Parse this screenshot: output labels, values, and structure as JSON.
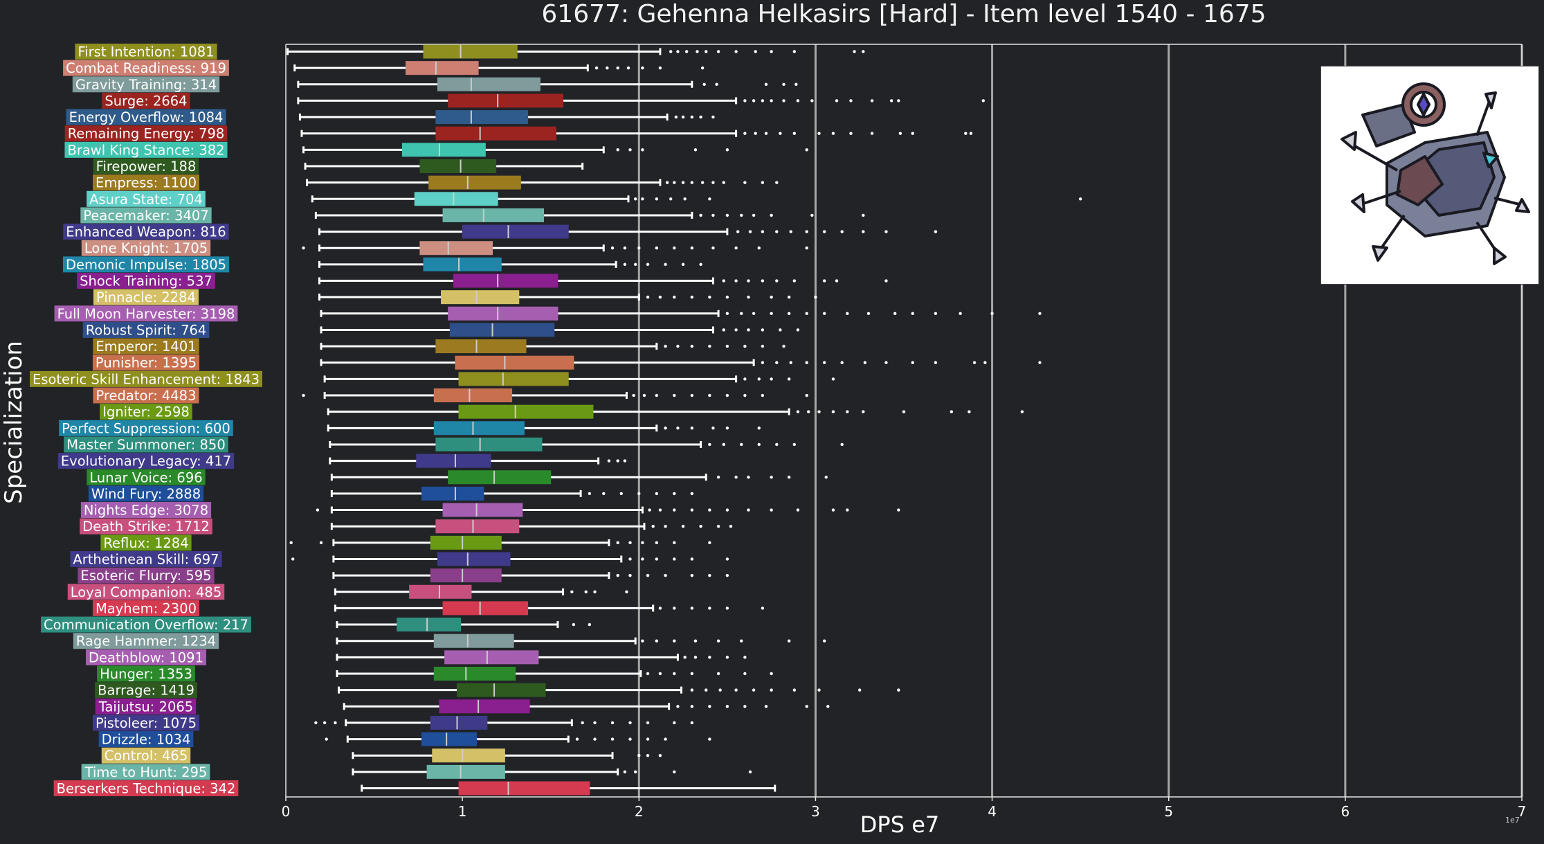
{
  "title": "61677: Gehenna Helkasirs [Hard] - Item level 1540 - 1675",
  "ylabel": "Specialization",
  "xlabel": "DPS e7",
  "x_multiplier_note": "1e7",
  "colors": {
    "background": "#212327",
    "text": "#ffffff",
    "grid": "#bdbdbd",
    "whisker": "#ffffff",
    "median": "#cccccc"
  },
  "chart_data": {
    "type": "box",
    "orientation": "horizontal",
    "title": "61677: Gehenna Helkasirs [Hard] - Item level 1540 - 1675",
    "xlabel": "DPS e7",
    "ylabel": "Specialization",
    "xlim": [
      0,
      7
    ],
    "xticks": [
      0,
      1,
      2,
      3,
      4,
      5,
      6,
      7
    ],
    "x_scale_note": "1e7",
    "grid": "vertical major lines",
    "categories": [
      {
        "label": "First Intention: 1081",
        "color": "#8f8f1f",
        "q1": 0.78,
        "med": 0.99,
        "q3": 1.31,
        "wlo": 0.01,
        "whi": 2.12,
        "out": [
          2.18,
          2.22,
          2.27,
          2.33,
          2.38,
          2.45,
          2.55,
          2.66,
          2.75,
          2.88,
          3.22,
          3.27
        ]
      },
      {
        "label": "Combat Readiness: 919",
        "color": "#cd7f72",
        "q1": 0.68,
        "med": 0.85,
        "q3": 1.09,
        "wlo": 0.05,
        "whi": 1.71,
        "out": [
          1.76,
          1.82,
          1.88,
          1.94,
          2.02,
          2.12,
          2.36
        ]
      },
      {
        "label": "Gravity Training: 314",
        "color": "#7f9b9b",
        "q1": 0.86,
        "med": 1.05,
        "q3": 1.44,
        "wlo": 0.07,
        "whi": 2.3,
        "out": [
          2.37,
          2.44,
          2.72,
          2.82,
          2.89
        ]
      },
      {
        "label": "Surge: 2664",
        "color": "#9b2420",
        "q1": 0.92,
        "med": 1.2,
        "q3": 1.57,
        "wlo": 0.07,
        "whi": 2.55,
        "out": [
          2.6,
          2.65,
          2.7,
          2.75,
          2.82,
          2.9,
          2.98,
          3.12,
          3.2,
          3.32,
          3.43,
          3.47,
          3.95
        ]
      },
      {
        "label": "Energy Overflow: 1084",
        "color": "#2f5b8a",
        "q1": 0.85,
        "med": 1.05,
        "q3": 1.37,
        "wlo": 0.08,
        "whi": 2.16,
        "out": [
          2.21,
          2.25,
          2.3,
          2.35,
          2.42
        ]
      },
      {
        "label": "Remaining Energy: 798",
        "color": "#9b2420",
        "q1": 0.85,
        "med": 1.1,
        "q3": 1.53,
        "wlo": 0.09,
        "whi": 2.55,
        "out": [
          2.6,
          2.66,
          2.72,
          2.8,
          2.88,
          3.02,
          3.1,
          3.2,
          3.32,
          3.48,
          3.55,
          3.85,
          3.88
        ]
      },
      {
        "label": "Brawl King Stance: 382",
        "color": "#3fc4b0",
        "q1": 0.66,
        "med": 0.87,
        "q3": 1.13,
        "wlo": 0.1,
        "whi": 1.8,
        "out": [
          1.88,
          1.95,
          2.02,
          2.32,
          2.5,
          2.95
        ]
      },
      {
        "label": "Firepower: 188",
        "color": "#2e5a1f",
        "q1": 0.76,
        "med": 0.99,
        "q3": 1.19,
        "wlo": 0.11,
        "whi": 1.68,
        "out": []
      },
      {
        "label": "Empress: 1100",
        "color": "#9b7a20",
        "q1": 0.81,
        "med": 1.03,
        "q3": 1.33,
        "wlo": 0.12,
        "whi": 2.12,
        "out": [
          2.16,
          2.2,
          2.25,
          2.3,
          2.36,
          2.42,
          2.48,
          2.6,
          2.7,
          2.78
        ]
      },
      {
        "label": "Asura State: 704",
        "color": "#5fd0c8",
        "q1": 0.73,
        "med": 0.95,
        "q3": 1.2,
        "wlo": 0.15,
        "whi": 1.94,
        "out": [
          1.98,
          2.02,
          2.1,
          2.18,
          2.26,
          2.4,
          4.5
        ]
      },
      {
        "label": "Peacemaker: 3407",
        "color": "#6ab5a8",
        "q1": 0.89,
        "med": 1.12,
        "q3": 1.46,
        "wlo": 0.17,
        "whi": 2.3,
        "out": [
          2.35,
          2.42,
          2.5,
          2.58,
          2.65,
          2.75,
          2.98,
          3.27
        ]
      },
      {
        "label": "Enhanced Weapon: 816",
        "color": "#3f3a8a",
        "q1": 1.0,
        "med": 1.26,
        "q3": 1.6,
        "wlo": 0.19,
        "whi": 2.5,
        "out": [
          2.56,
          2.63,
          2.7,
          2.78,
          2.86,
          2.95,
          3.05,
          3.15,
          3.27,
          3.4,
          3.68
        ]
      },
      {
        "label": "Lone Knight: 1705",
        "color": "#cd8f82",
        "q1": 0.76,
        "med": 0.92,
        "q3": 1.17,
        "wlo": 0.19,
        "whi": 1.8,
        "out": [
          0.1,
          1.85,
          1.92,
          2.0,
          2.1,
          2.2,
          2.3,
          2.42,
          2.55,
          2.68,
          2.95
        ]
      },
      {
        "label": "Demonic Impulse: 1805",
        "color": "#1f86a8",
        "q1": 0.78,
        "med": 0.98,
        "q3": 1.22,
        "wlo": 0.19,
        "whi": 1.87,
        "out": [
          1.92,
          1.98,
          2.05,
          2.15,
          2.25,
          2.35
        ]
      },
      {
        "label": "Shock Training: 537",
        "color": "#8a1f8f",
        "q1": 0.95,
        "med": 1.2,
        "q3": 1.54,
        "wlo": 0.19,
        "whi": 2.42,
        "out": [
          2.48,
          2.55,
          2.62,
          2.7,
          2.78,
          2.88,
          3.05,
          3.12,
          3.4
        ]
      },
      {
        "label": "Pinnacle: 2284",
        "color": "#d4c066",
        "q1": 0.88,
        "med": 1.08,
        "q3": 1.32,
        "wlo": 0.19,
        "whi": 2.0,
        "out": [
          2.05,
          2.12,
          2.2,
          2.3,
          2.4,
          2.5,
          2.62,
          2.75,
          2.85,
          3.0
        ]
      },
      {
        "label": "Full Moon Harvester: 3198",
        "color": "#a65fb0",
        "q1": 0.92,
        "med": 1.2,
        "q3": 1.54,
        "wlo": 0.2,
        "whi": 2.45,
        "out": [
          2.5,
          2.58,
          2.65,
          2.75,
          2.85,
          2.95,
          3.05,
          3.18,
          3.3,
          3.45,
          3.55,
          3.68,
          3.82,
          4.0,
          4.27
        ]
      },
      {
        "label": "Robust Spirit: 764",
        "color": "#2f4f8a",
        "q1": 0.93,
        "med": 1.17,
        "q3": 1.52,
        "wlo": 0.2,
        "whi": 2.42,
        "out": [
          2.48,
          2.55,
          2.62,
          2.7,
          2.8,
          2.9
        ]
      },
      {
        "label": "Emperor: 1401",
        "color": "#9b7a20",
        "q1": 0.85,
        "med": 1.08,
        "q3": 1.36,
        "wlo": 0.2,
        "whi": 2.1,
        "out": [
          2.15,
          2.22,
          2.3,
          2.4,
          2.5,
          2.6,
          2.7,
          2.82
        ]
      },
      {
        "label": "Punisher: 1395",
        "color": "#c8704e",
        "q1": 0.96,
        "med": 1.24,
        "q3": 1.63,
        "wlo": 0.2,
        "whi": 2.65,
        "out": [
          2.7,
          2.78,
          2.86,
          2.95,
          3.05,
          3.15,
          3.28,
          3.4,
          3.55,
          3.68,
          3.9,
          3.96,
          4.27
        ]
      },
      {
        "label": "Esoteric Skill Enhancement: 1843",
        "color": "#8f8f1f",
        "q1": 0.98,
        "med": 1.23,
        "q3": 1.6,
        "wlo": 0.22,
        "whi": 2.55,
        "out": [
          2.6,
          2.68,
          2.75,
          2.85,
          3.1
        ]
      },
      {
        "label": "Predator: 4483",
        "color": "#c8704e",
        "q1": 0.84,
        "med": 1.04,
        "q3": 1.28,
        "wlo": 0.22,
        "whi": 1.93,
        "out": [
          0.1,
          1.97,
          2.03,
          2.1,
          2.2,
          2.3,
          2.4,
          2.5,
          2.6,
          2.7,
          2.95
        ]
      },
      {
        "label": "Igniter: 2598",
        "color": "#6a9a14",
        "q1": 0.98,
        "med": 1.3,
        "q3": 1.74,
        "wlo": 0.24,
        "whi": 2.85,
        "out": [
          2.9,
          2.96,
          3.02,
          3.1,
          3.18,
          3.27,
          3.5,
          3.77,
          3.87,
          4.17
        ]
      },
      {
        "label": "Perfect Suppression: 600",
        "color": "#1f86a8",
        "q1": 0.84,
        "med": 1.06,
        "q3": 1.35,
        "wlo": 0.24,
        "whi": 2.1,
        "out": [
          2.15,
          2.22,
          2.3,
          2.42,
          2.5,
          2.68
        ]
      },
      {
        "label": "Master Summoner: 850",
        "color": "#2f8f7f",
        "q1": 0.85,
        "med": 1.1,
        "q3": 1.45,
        "wlo": 0.25,
        "whi": 2.35,
        "out": [
          2.4,
          2.48,
          2.58,
          2.68,
          2.78,
          2.88,
          3.15
        ]
      },
      {
        "label": "Evolutionary Legacy: 417",
        "color": "#3f3a8a",
        "q1": 0.74,
        "med": 0.96,
        "q3": 1.16,
        "wlo": 0.25,
        "whi": 1.77,
        "out": [
          1.83,
          1.88,
          1.92
        ]
      },
      {
        "label": "Lunar Voice: 696",
        "color": "#2a8a2a",
        "q1": 0.92,
        "med": 1.18,
        "q3": 1.5,
        "wlo": 0.26,
        "whi": 2.38,
        "out": [
          2.45,
          2.55,
          2.62,
          2.75,
          2.85,
          3.06
        ]
      },
      {
        "label": "Wind Fury: 2888",
        "color": "#1f4f9b",
        "q1": 0.77,
        "med": 0.96,
        "q3": 1.12,
        "wlo": 0.26,
        "whi": 1.67,
        "out": [
          1.72,
          1.8,
          1.9,
          2.0,
          2.1,
          2.2,
          2.3
        ]
      },
      {
        "label": "Nights Edge: 3078",
        "color": "#a65fb0",
        "q1": 0.89,
        "med": 1.08,
        "q3": 1.34,
        "wlo": 0.26,
        "whi": 2.02,
        "out": [
          0.18,
          2.06,
          2.12,
          2.2,
          2.3,
          2.4,
          2.5,
          2.62,
          2.75,
          2.9,
          3.1,
          3.18,
          3.47
        ]
      },
      {
        "label": "Death Strike: 1712",
        "color": "#c8507e",
        "q1": 0.85,
        "med": 1.06,
        "q3": 1.32,
        "wlo": 0.26,
        "whi": 2.03,
        "out": [
          2.08,
          2.15,
          2.25,
          2.35,
          2.45,
          2.52
        ]
      },
      {
        "label": "Reflux: 1284",
        "color": "#6a9a14",
        "q1": 0.82,
        "med": 1.0,
        "q3": 1.22,
        "wlo": 0.27,
        "whi": 1.83,
        "out": [
          0.03,
          0.2,
          1.88,
          1.95,
          2.02,
          2.1,
          2.2,
          2.4
        ]
      },
      {
        "label": "Arthetinean Skill: 697",
        "color": "#3f3a8a",
        "q1": 0.86,
        "med": 1.03,
        "q3": 1.27,
        "wlo": 0.27,
        "whi": 1.9,
        "out": [
          0.04,
          1.95,
          2.02,
          2.1,
          2.2,
          2.3,
          2.5
        ]
      },
      {
        "label": "Esoteric Flurry: 595",
        "color": "#8a3f8a",
        "q1": 0.82,
        "med": 1.0,
        "q3": 1.22,
        "wlo": 0.27,
        "whi": 1.83,
        "out": [
          1.88,
          1.95,
          2.05,
          2.15,
          2.3,
          2.4,
          2.5
        ]
      },
      {
        "label": "Loyal Companion: 485",
        "color": "#c8507e",
        "q1": 0.7,
        "med": 0.87,
        "q3": 1.05,
        "wlo": 0.28,
        "whi": 1.57,
        "out": [
          1.62,
          1.7,
          1.75,
          1.93
        ]
      },
      {
        "label": "Mayhem: 2300",
        "color": "#d43a50",
        "q1": 0.89,
        "med": 1.1,
        "q3": 1.37,
        "wlo": 0.28,
        "whi": 2.08,
        "out": [
          2.12,
          2.2,
          2.3,
          2.4,
          2.5,
          2.7
        ]
      },
      {
        "label": "Communication Overflow: 217",
        "color": "#2f8f7f",
        "q1": 0.63,
        "med": 0.8,
        "q3": 0.99,
        "wlo": 0.29,
        "whi": 1.54,
        "out": [
          1.63,
          1.72
        ]
      },
      {
        "label": "Rage Hammer: 1234",
        "color": "#7f9b9b",
        "q1": 0.84,
        "med": 1.03,
        "q3": 1.29,
        "wlo": 0.29,
        "whi": 1.98,
        "out": [
          2.02,
          2.1,
          2.2,
          2.32,
          2.45,
          2.58,
          2.85,
          3.05
        ]
      },
      {
        "label": "Deathblow: 1091",
        "color": "#a65fb0",
        "q1": 0.9,
        "med": 1.14,
        "q3": 1.43,
        "wlo": 0.29,
        "whi": 2.22,
        "out": [
          2.26,
          2.32,
          2.4,
          2.5,
          2.6
        ]
      },
      {
        "label": "Hunger: 1353",
        "color": "#2a8a2a",
        "q1": 0.84,
        "med": 1.02,
        "q3": 1.3,
        "wlo": 0.29,
        "whi": 2.01,
        "out": [
          2.05,
          2.12,
          2.2,
          2.3,
          2.45,
          2.6,
          2.75
        ]
      },
      {
        "label": "Barrage: 1419",
        "color": "#2e5a1f",
        "q1": 0.97,
        "med": 1.18,
        "q3": 1.47,
        "wlo": 0.3,
        "whi": 2.24,
        "out": [
          2.3,
          2.38,
          2.46,
          2.55,
          2.65,
          2.75,
          2.88,
          3.02,
          3.25,
          3.47
        ]
      },
      {
        "label": "Taijutsu: 2065",
        "color": "#8a1f8f",
        "q1": 0.87,
        "med": 1.09,
        "q3": 1.38,
        "wlo": 0.33,
        "whi": 2.17,
        "out": [
          2.22,
          2.3,
          2.4,
          2.5,
          2.6,
          2.72,
          2.95,
          3.07
        ]
      },
      {
        "label": "Pistoleer: 1075",
        "color": "#3f3a8a",
        "q1": 0.82,
        "med": 0.97,
        "q3": 1.14,
        "wlo": 0.34,
        "whi": 1.62,
        "out": [
          0.17,
          0.22,
          0.28,
          1.68,
          1.75,
          1.85,
          1.95,
          2.05,
          2.2,
          2.3
        ]
      },
      {
        "label": "Drizzle: 1034",
        "color": "#1f4f9b",
        "q1": 0.77,
        "med": 0.91,
        "q3": 1.08,
        "wlo": 0.35,
        "whi": 1.6,
        "out": [
          0.23,
          1.65,
          1.75,
          1.85,
          1.95,
          2.05,
          2.15,
          2.4
        ]
      },
      {
        "label": "Control: 465",
        "color": "#d4c066",
        "q1": 0.83,
        "med": 1.0,
        "q3": 1.24,
        "wlo": 0.38,
        "whi": 1.85,
        "out": [
          2.0,
          2.05,
          2.12
        ]
      },
      {
        "label": "Time to Hunt: 295",
        "color": "#6ab5a8",
        "q1": 0.8,
        "med": 0.99,
        "q3": 1.24,
        "wlo": 0.38,
        "whi": 1.88,
        "out": [
          1.92,
          1.98,
          2.2,
          2.63
        ]
      },
      {
        "label": "Berserkers Technique: 342",
        "color": "#d43a50",
        "q1": 0.98,
        "med": 1.26,
        "q3": 1.72,
        "wlo": 0.43,
        "whi": 2.77,
        "out": []
      }
    ]
  }
}
